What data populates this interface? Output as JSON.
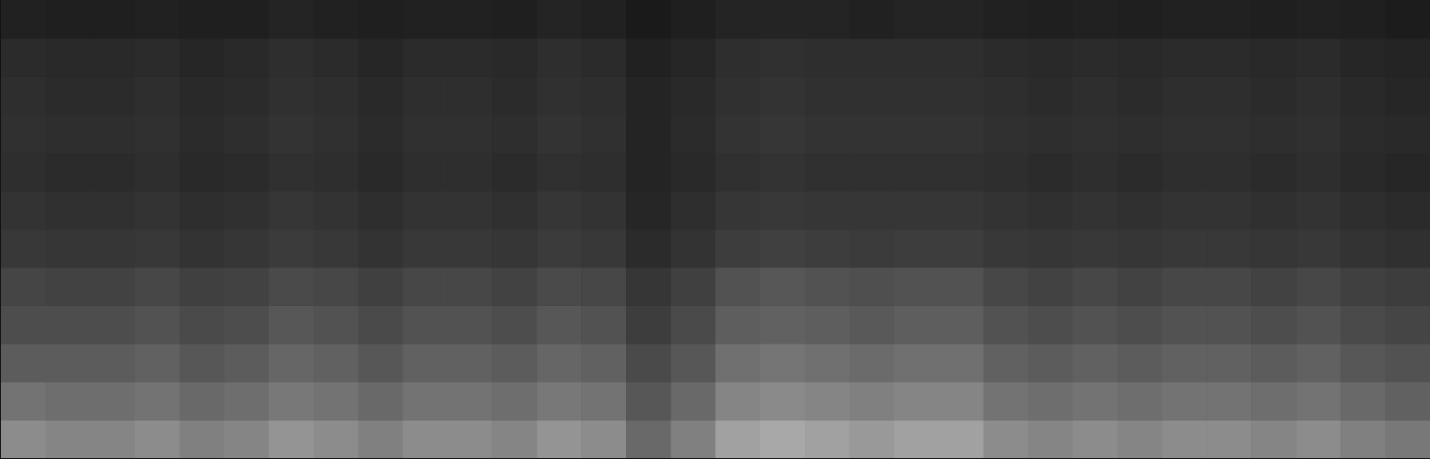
{
  "chart_data": {
    "type": "heatmap",
    "xlim": [
      0,
      32
    ],
    "ylim": [
      0,
      12
    ],
    "xticks": [],
    "yticks": [],
    "tick_labels": false,
    "color": "#ffffff",
    "color_range": [
      0,
      1
    ],
    "cells": [
      [
        0.55,
        0.52,
        0.52,
        0.55,
        0.5,
        0.52,
        0.58,
        0.55,
        0.5,
        0.55,
        0.55,
        0.52,
        0.58,
        0.55,
        0.41,
        0.5,
        0.63,
        0.66,
        0.63,
        0.6,
        0.63,
        0.63,
        0.55,
        0.52,
        0.55,
        0.52,
        0.55,
        0.55,
        0.52,
        0.55,
        0.5,
        0.47
      ],
      [
        0.45,
        0.43,
        0.43,
        0.45,
        0.41,
        0.43,
        0.47,
        0.45,
        0.41,
        0.45,
        0.45,
        0.43,
        0.47,
        0.45,
        0.34,
        0.41,
        0.52,
        0.54,
        0.52,
        0.5,
        0.52,
        0.52,
        0.45,
        0.43,
        0.45,
        0.43,
        0.45,
        0.45,
        0.43,
        0.45,
        0.41,
        0.38
      ],
      [
        0.36,
        0.36,
        0.36,
        0.38,
        0.34,
        0.36,
        0.4,
        0.38,
        0.34,
        0.38,
        0.38,
        0.36,
        0.4,
        0.38,
        0.29,
        0.34,
        0.44,
        0.46,
        0.44,
        0.42,
        0.44,
        0.44,
        0.38,
        0.36,
        0.38,
        0.36,
        0.38,
        0.38,
        0.36,
        0.38,
        0.34,
        0.32
      ],
      [
        0.3,
        0.3,
        0.3,
        0.32,
        0.29,
        0.3,
        0.34,
        0.32,
        0.29,
        0.32,
        0.32,
        0.3,
        0.34,
        0.32,
        0.24,
        0.29,
        0.37,
        0.38,
        0.37,
        0.35,
        0.37,
        0.37,
        0.32,
        0.3,
        0.32,
        0.3,
        0.32,
        0.32,
        0.3,
        0.32,
        0.29,
        0.27
      ],
      [
        0.27,
        0.26,
        0.26,
        0.28,
        0.25,
        0.26,
        0.29,
        0.28,
        0.25,
        0.28,
        0.28,
        0.26,
        0.29,
        0.28,
        0.21,
        0.25,
        0.32,
        0.34,
        0.32,
        0.31,
        0.32,
        0.32,
        0.28,
        0.26,
        0.28,
        0.26,
        0.28,
        0.28,
        0.26,
        0.28,
        0.25,
        0.24
      ],
      [
        0.22,
        0.21,
        0.21,
        0.22,
        0.2,
        0.21,
        0.23,
        0.22,
        0.2,
        0.22,
        0.22,
        0.21,
        0.23,
        0.22,
        0.17,
        0.2,
        0.24,
        0.25,
        0.24,
        0.23,
        0.24,
        0.24,
        0.22,
        0.21,
        0.22,
        0.21,
        0.22,
        0.22,
        0.21,
        0.22,
        0.2,
        0.19
      ],
      [
        0.2,
        0.19,
        0.19,
        0.2,
        0.18,
        0.19,
        0.21,
        0.2,
        0.18,
        0.2,
        0.2,
        0.19,
        0.21,
        0.2,
        0.15,
        0.18,
        0.21,
        0.22,
        0.21,
        0.21,
        0.21,
        0.21,
        0.2,
        0.19,
        0.2,
        0.19,
        0.2,
        0.2,
        0.19,
        0.2,
        0.18,
        0.17
      ],
      [
        0.18,
        0.17,
        0.17,
        0.18,
        0.16,
        0.17,
        0.19,
        0.18,
        0.16,
        0.18,
        0.18,
        0.17,
        0.19,
        0.18,
        0.14,
        0.16,
        0.19,
        0.2,
        0.19,
        0.19,
        0.19,
        0.19,
        0.18,
        0.17,
        0.18,
        0.17,
        0.18,
        0.18,
        0.17,
        0.18,
        0.16,
        0.15
      ],
      [
        0.19,
        0.18,
        0.18,
        0.19,
        0.17,
        0.18,
        0.2,
        0.19,
        0.17,
        0.19,
        0.19,
        0.18,
        0.2,
        0.19,
        0.14,
        0.17,
        0.2,
        0.21,
        0.2,
        0.2,
        0.2,
        0.2,
        0.19,
        0.18,
        0.19,
        0.18,
        0.19,
        0.19,
        0.18,
        0.19,
        0.17,
        0.16
      ],
      [
        0.18,
        0.17,
        0.17,
        0.18,
        0.16,
        0.17,
        0.19,
        0.18,
        0.16,
        0.18,
        0.18,
        0.17,
        0.19,
        0.18,
        0.14,
        0.16,
        0.19,
        0.2,
        0.19,
        0.19,
        0.19,
        0.19,
        0.18,
        0.17,
        0.18,
        0.17,
        0.18,
        0.18,
        0.17,
        0.18,
        0.16,
        0.15
      ],
      [
        0.17,
        0.16,
        0.16,
        0.17,
        0.15,
        0.16,
        0.18,
        0.17,
        0.15,
        0.17,
        0.17,
        0.16,
        0.18,
        0.17,
        0.13,
        0.15,
        0.18,
        0.19,
        0.18,
        0.18,
        0.18,
        0.18,
        0.17,
        0.16,
        0.17,
        0.16,
        0.17,
        0.17,
        0.16,
        0.17,
        0.15,
        0.14
      ],
      [
        0.13,
        0.12,
        0.12,
        0.13,
        0.12,
        0.12,
        0.14,
        0.13,
        0.12,
        0.13,
        0.13,
        0.12,
        0.14,
        0.13,
        0.1,
        0.12,
        0.14,
        0.14,
        0.14,
        0.13,
        0.14,
        0.14,
        0.13,
        0.12,
        0.13,
        0.12,
        0.13,
        0.13,
        0.12,
        0.13,
        0.12,
        0.11
      ]
    ]
  }
}
